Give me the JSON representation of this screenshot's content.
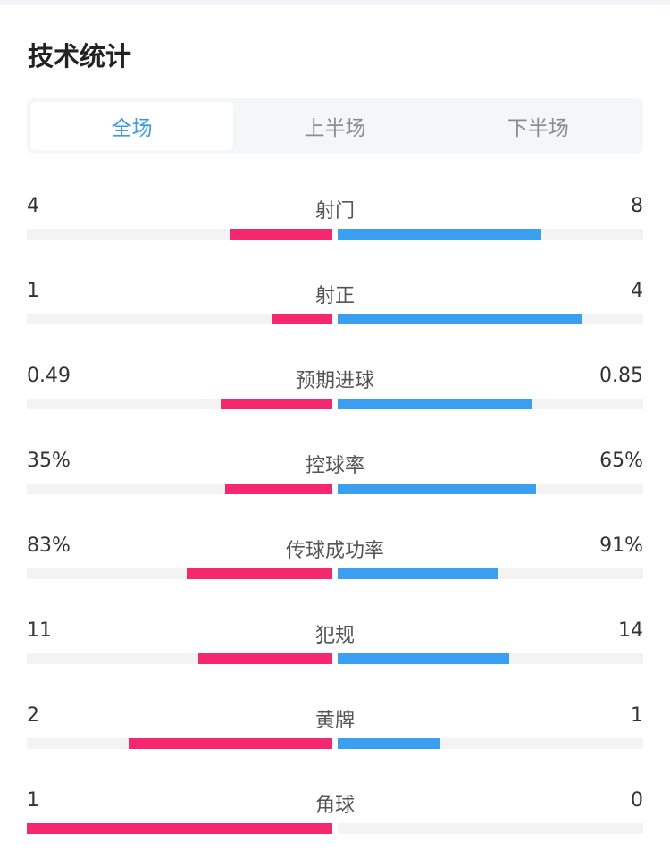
{
  "title": "技术统计",
  "tabs": [
    {
      "label": "全场",
      "active": true
    },
    {
      "label": "上半场",
      "active": false
    },
    {
      "label": "下半场",
      "active": false
    }
  ],
  "colors": {
    "home": "#f5286e",
    "away": "#3a9ff0",
    "active_tab": "#3b9be3"
  },
  "stats": [
    {
      "label": "射门",
      "home": "4",
      "away": "8",
      "home_val": 4,
      "away_val": 8
    },
    {
      "label": "射正",
      "home": "1",
      "away": "4",
      "home_val": 1,
      "away_val": 4
    },
    {
      "label": "预期进球",
      "home": "0.49",
      "away": "0.85",
      "home_val": 0.49,
      "away_val": 0.85
    },
    {
      "label": "控球率",
      "home": "35%",
      "away": "65%",
      "home_val": 35,
      "away_val": 65
    },
    {
      "label": "传球成功率",
      "home": "83%",
      "away": "91%",
      "home_val": 83,
      "away_val": 91
    },
    {
      "label": "犯规",
      "home": "11",
      "away": "14",
      "home_val": 11,
      "away_val": 14
    },
    {
      "label": "黄牌",
      "home": "2",
      "away": "1",
      "home_val": 2,
      "away_val": 1
    },
    {
      "label": "角球",
      "home": "1",
      "away": "0",
      "home_val": 1,
      "away_val": 0
    }
  ]
}
